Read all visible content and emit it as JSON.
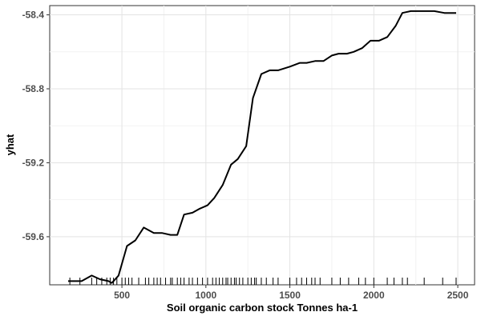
{
  "chart_data": {
    "type": "line",
    "xlabel": "Soil organic carbon stock Tonnes ha-1",
    "ylabel": "yhat",
    "xlim": [
      70,
      2600
    ],
    "ylim": [
      -59.86,
      -58.35
    ],
    "xticks": [
      500,
      1000,
      1500,
      2000,
      2500
    ],
    "yticks": [
      -59.6,
      -59.2,
      -58.8,
      -58.4
    ],
    "ytick_labels": [
      "-59.6",
      "-59.2",
      "-58.8",
      "-58.4"
    ],
    "grid": true,
    "line_color": "#000000",
    "series": [
      {
        "x": [
          180,
          260,
          320,
          370,
          420,
          440,
          480,
          530,
          580,
          630,
          690,
          740,
          790,
          830,
          870,
          920,
          960,
          1010,
          1050,
          1100,
          1150,
          1190,
          1240,
          1280,
          1330,
          1380,
          1430,
          1500,
          1560,
          1600,
          1650,
          1700,
          1750,
          1790,
          1840,
          1880,
          1930,
          1980,
          2030,
          2080,
          2130,
          2170,
          2220,
          2260,
          2310,
          2360,
          2420,
          2490
        ],
        "y": [
          -59.84,
          -59.84,
          -59.81,
          -59.83,
          -59.84,
          -59.85,
          -59.81,
          -59.65,
          -59.62,
          -59.55,
          -59.58,
          -59.58,
          -59.59,
          -59.59,
          -59.48,
          -59.47,
          -59.45,
          -59.43,
          -59.39,
          -59.32,
          -59.21,
          -59.18,
          -59.11,
          -58.85,
          -58.72,
          -58.7,
          -58.7,
          -58.68,
          -58.66,
          -58.66,
          -58.65,
          -58.65,
          -58.62,
          -58.61,
          -58.61,
          -58.6,
          -58.58,
          -58.54,
          -58.54,
          -58.52,
          -58.46,
          -58.39,
          -58.38,
          -58.38,
          -58.38,
          -58.38,
          -58.39,
          -58.39
        ]
      }
    ],
    "rug": [
      190,
      250,
      320,
      350,
      380,
      410,
      430,
      450,
      470,
      500,
      520,
      540,
      560,
      600,
      640,
      660,
      690,
      710,
      730,
      760,
      790,
      800,
      830,
      850,
      870,
      900,
      920,
      950,
      980,
      1010,
      1040,
      1060,
      1080,
      1100,
      1120,
      1130,
      1150,
      1170,
      1180,
      1200,
      1220,
      1250,
      1270,
      1290,
      1300,
      1330,
      1360,
      1400,
      1430,
      1500,
      1540,
      1570,
      1600,
      1630,
      1650,
      1680,
      1750,
      1800,
      1850,
      1910,
      1950,
      2000,
      2080,
      2120,
      2170,
      2200,
      2300,
      2410,
      2490
    ]
  }
}
